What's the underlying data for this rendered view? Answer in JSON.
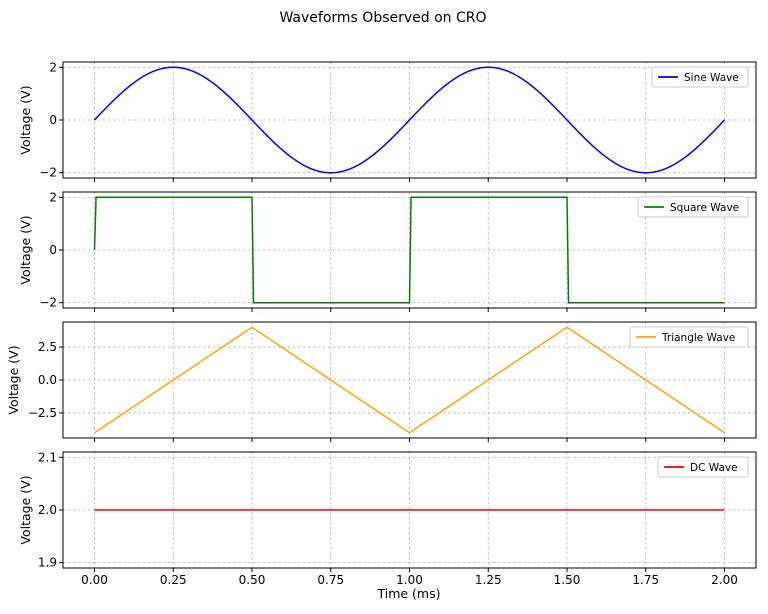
{
  "chart_data": {
    "title": "Waveforms Observed on CRO",
    "xlabel": "Time (ms)",
    "xlim": [
      -0.1,
      2.1
    ],
    "xticks": [
      0.0,
      0.25,
      0.5,
      0.75,
      1.0,
      1.25,
      1.5,
      1.75,
      2.0
    ],
    "xtick_labels": [
      "0.00",
      "0.25",
      "0.50",
      "0.75",
      "1.00",
      "1.25",
      "1.50",
      "1.75",
      "2.00"
    ],
    "grid": true,
    "legend_position": "upper right",
    "subplots": [
      {
        "type": "line",
        "ylabel": "Voltage (V)",
        "ylim": [
          -2.2,
          2.2
        ],
        "yticks": [
          -2,
          0,
          2
        ],
        "ytick_labels": [
          "−2",
          "0",
          "2"
        ],
        "series": [
          {
            "name": "Sine Wave",
            "color": "#0000ff",
            "shape": "sine",
            "amplitude": 2,
            "frequency_per_ms": 1,
            "x": [
              0,
              0.25,
              0.5,
              0.75,
              1.0,
              1.25,
              1.5,
              1.75,
              2.0
            ],
            "y": [
              0,
              2,
              0,
              -2,
              0,
              2,
              0,
              -2,
              0
            ]
          }
        ]
      },
      {
        "type": "line",
        "ylabel": "Voltage (V)",
        "ylim": [
          -2.2,
          2.2
        ],
        "yticks": [
          -2,
          0,
          2
        ],
        "ytick_labels": [
          "−2",
          "0",
          "2"
        ],
        "series": [
          {
            "name": "Square Wave",
            "color": "#008000",
            "x": [
              0,
              0.005,
              0.5,
              0.505,
              1.0,
              1.005,
              1.5,
              1.505,
              2.0
            ],
            "y": [
              0,
              2,
              2,
              -2,
              -2,
              2,
              2,
              -2,
              -2
            ]
          }
        ]
      },
      {
        "type": "line",
        "ylabel": "Voltage (V)",
        "ylim": [
          -4.4,
          4.4
        ],
        "yticks": [
          -2.5,
          0.0,
          2.5
        ],
        "ytick_labels": [
          "−2.5",
          "0.0",
          "2.5"
        ],
        "series": [
          {
            "name": "Triangle Wave",
            "color": "#ffa500",
            "x": [
              0,
              0.5,
              1.0,
              1.5,
              2.0
            ],
            "y": [
              -4,
              4,
              -4,
              4,
              -4
            ]
          }
        ]
      },
      {
        "type": "line",
        "ylabel": "Voltage (V)",
        "ylim": [
          1.89,
          2.11
        ],
        "yticks": [
          1.9,
          2.0,
          2.1
        ],
        "ytick_labels": [
          "1.9",
          "2.0",
          "2.1"
        ],
        "series": [
          {
            "name": "DC Wave",
            "color": "#ff0000",
            "x": [
              0,
              2.0
            ],
            "y": [
              2.0,
              2.0
            ]
          }
        ]
      }
    ]
  }
}
